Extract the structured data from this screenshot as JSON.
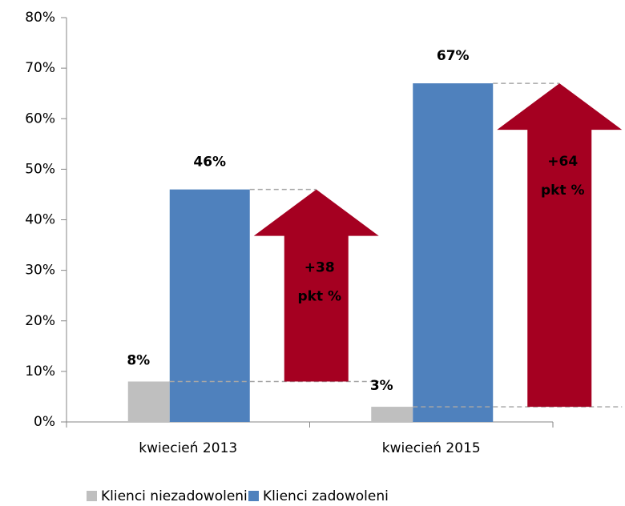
{
  "chart_data": {
    "type": "bar",
    "categories": [
      "kwiecień 2013",
      "kwiecień 2015"
    ],
    "series": [
      {
        "name": "Klienci niezadowoleni",
        "color": "#bfbfbf",
        "values": [
          8,
          3
        ],
        "value_labels": [
          "8%",
          "3%"
        ]
      },
      {
        "name": "Klienci zadowoleni",
        "color": "#4f81bd",
        "values": [
          46,
          67
        ],
        "value_labels": [
          "46%",
          "67%"
        ]
      }
    ],
    "ylim": [
      0,
      80
    ],
    "yticks": [
      {
        "value": 0,
        "label": "0%"
      },
      {
        "value": 10,
        "label": "10%"
      },
      {
        "value": 20,
        "label": "20%"
      },
      {
        "value": 30,
        "label": "30%"
      },
      {
        "value": 40,
        "label": "40%"
      },
      {
        "value": 50,
        "label": "50%"
      },
      {
        "value": 60,
        "label": "60%"
      },
      {
        "value": 70,
        "label": "70%"
      },
      {
        "value": 80,
        "label": "80%"
      }
    ],
    "annotations": [
      {
        "label": "+38",
        "unit": "pkt %"
      },
      {
        "label": "+64",
        "unit": "pkt %"
      }
    ],
    "arrow_color": "#a50021",
    "legend": "bottom"
  }
}
